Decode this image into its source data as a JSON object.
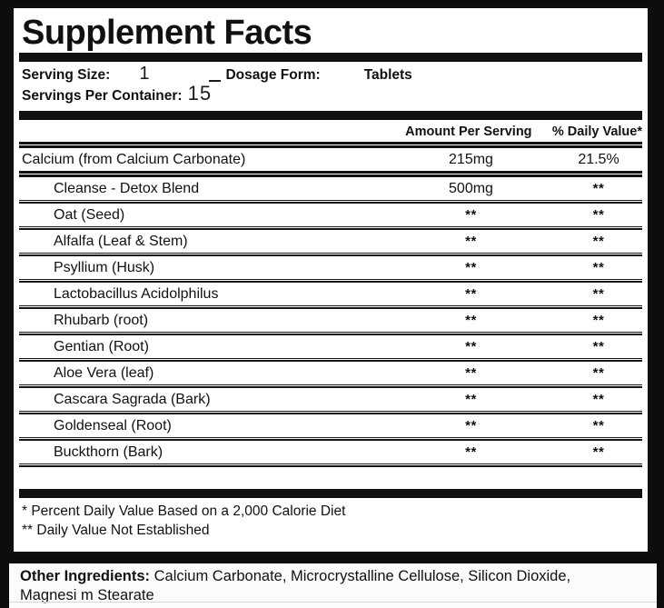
{
  "label": {
    "title": "Supplement Facts",
    "serving_info": {
      "serving_size_label": "Serving Size:",
      "serving_size_value": "1",
      "dosage_form_label": "Dosage Form:",
      "dosage_form_value": "Tablets",
      "servings_per_container_label": "Servings Per Container:",
      "servings_per_container_value": "15"
    },
    "table": {
      "columns": {
        "amount": "Amount Per Serving",
        "daily_value": "% Daily Value*"
      },
      "rows": [
        {
          "name": "Calcium (from Calcium Carbonate)",
          "amount": "215mg",
          "daily_value": "21.5%"
        },
        {
          "name": "Cleanse - Detox Blend",
          "amount": "500mg",
          "daily_value": "**"
        },
        {
          "name": "Oat (Seed)",
          "amount": "**",
          "daily_value": "**"
        },
        {
          "name": "Alfalfa (Leaf & Stem)",
          "amount": "**",
          "daily_value": "**"
        },
        {
          "name": "Psyllium (Husk)",
          "amount": "**",
          "daily_value": "**"
        },
        {
          "name": "Lactobacillus Acidolphilus",
          "amount": "**",
          "daily_value": "**"
        },
        {
          "name": "Rhubarb (root)",
          "amount": "**",
          "daily_value": "**"
        },
        {
          "name": "Gentian (Root)",
          "amount": "**",
          "daily_value": "**"
        },
        {
          "name": "Aloe Vera (leaf)",
          "amount": "**",
          "daily_value": "**"
        },
        {
          "name": "Cascara Sagrada (Bark)",
          "amount": "**",
          "daily_value": "**"
        },
        {
          "name": "Goldenseal (Root)",
          "amount": "**",
          "daily_value": "**"
        },
        {
          "name": "Buckthorn (Bark)",
          "amount": "**",
          "daily_value": "**"
        }
      ]
    },
    "footnotes": {
      "percent_dv": "* Percent Daily Value Based on a 2,000 Calorie Diet",
      "dv_not_established": "** Daily Value Not Established"
    }
  },
  "other_ingredients": {
    "label": "Other Ingredients:",
    "line1": " Calcium Carbonate, Microcrystalline Cellulose, Silicon Dioxide,",
    "line2": "Magnesi m Stearate"
  },
  "colors": {
    "page_background": "#0c0c0c",
    "panel_background": "#ffffff",
    "ink": "#111111"
  }
}
